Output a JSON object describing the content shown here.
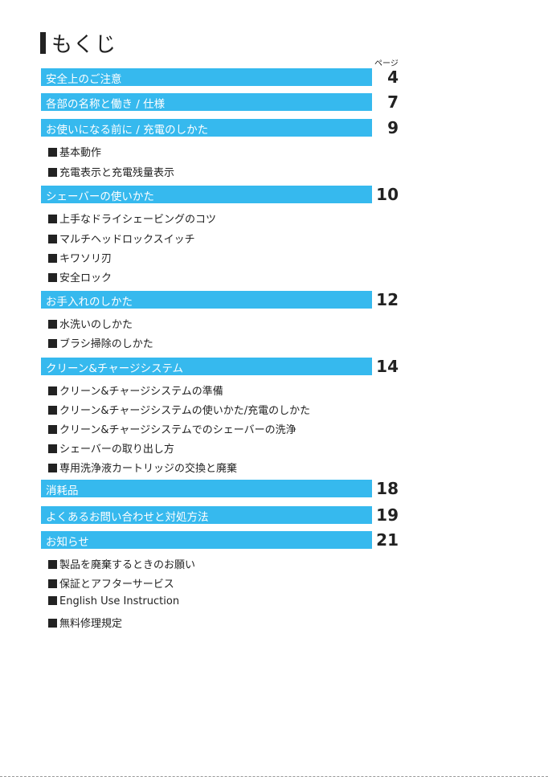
{
  "title": "もくじ",
  "page_label": "ページ",
  "sections": [
    {
      "label": "安全上のご注意",
      "page": "4"
    },
    {
      "label": "各部の名称と働き / 仕様",
      "page": "7"
    },
    {
      "label": "お使いになる前に / 充電のしかた",
      "page": "9"
    },
    {
      "label": "シェーバーの使いかた",
      "page": "10"
    },
    {
      "label": "お手入れのしかた",
      "page": "12"
    },
    {
      "label": "クリーン&チャージシステム",
      "page": "14"
    },
    {
      "label": "消耗品",
      "page": "18"
    },
    {
      "label": "よくあるお問い合わせと対処方法",
      "page": "19"
    },
    {
      "label": "お知らせ",
      "page": "21"
    }
  ],
  "subitems": {
    "s3": [
      "基本動作",
      "充電表示と充電残量表示"
    ],
    "s4": [
      "上手なドライシェービングのコツ",
      "マルチヘッドロックスイッチ",
      "キワソリ刃",
      "安全ロック"
    ],
    "s5": [
      "水洗いのしかた",
      "ブラシ掃除のしかた"
    ],
    "s6": [
      "クリーン&チャージシステムの準備",
      "クリーン&チャージシステムの使いかた/充電のしかた",
      "クリーン&チャージシステムでのシェーバーの洗浄",
      "シェーバーの取り出し方",
      "専用洗浄液カートリッジの交換と廃棄"
    ],
    "s9": [
      "製品を廃棄するときのお願い",
      "保証とアフターサービス",
      "English Use Instruction",
      "無料修理規定"
    ]
  }
}
